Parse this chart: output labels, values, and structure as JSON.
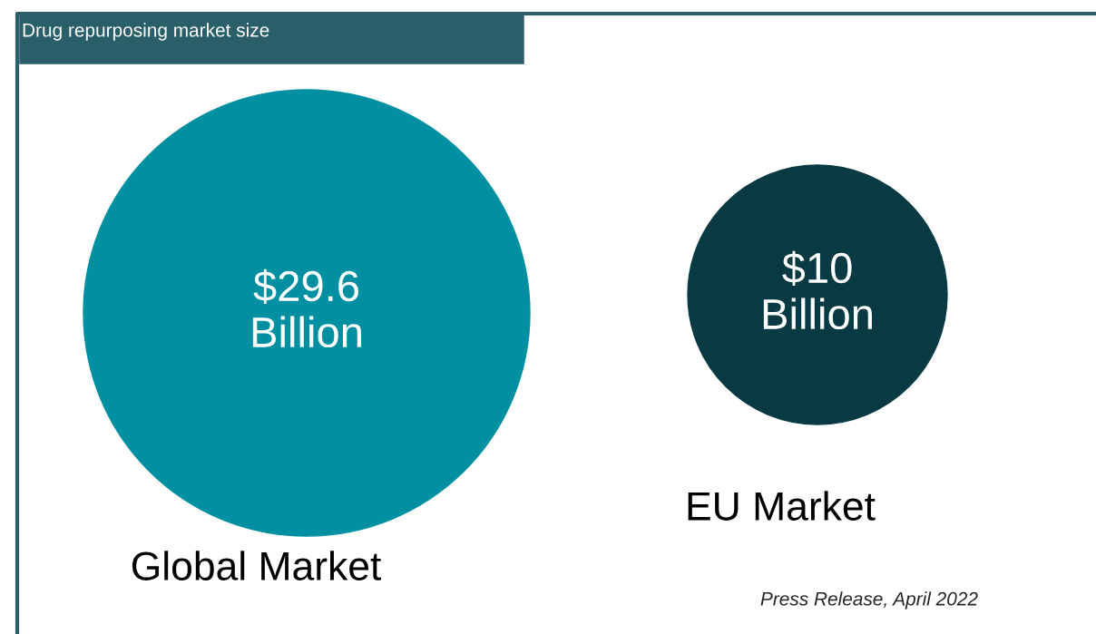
{
  "chart_data": {
    "type": "other",
    "title": "Drug repurposing market size",
    "categories": [
      "Global Market",
      "EU Market"
    ],
    "values": [
      29.6,
      10
    ],
    "value_labels": [
      "$29.6\nBillion",
      "$10\nBillion"
    ],
    "colors": [
      "#0190a2",
      "#083a44"
    ],
    "annotations": [
      "Press Release, April 2022"
    ]
  }
}
